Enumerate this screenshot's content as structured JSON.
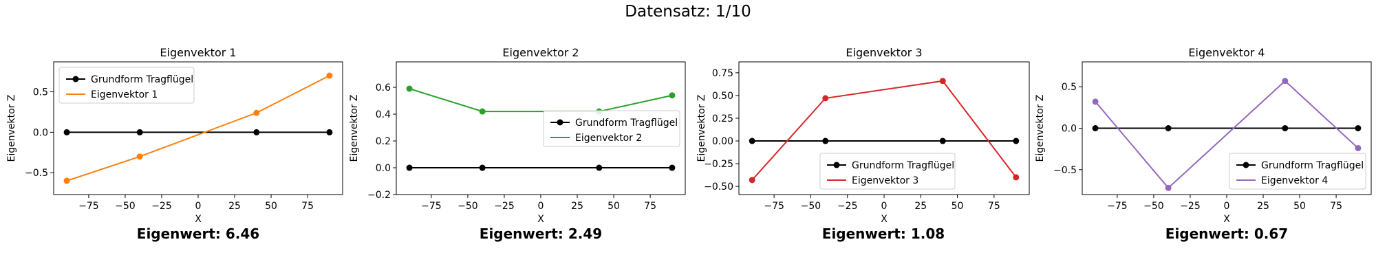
{
  "figure": {
    "title": "Datensatz: 1/10"
  },
  "chart_data": [
    {
      "type": "line",
      "title": "Eigenvektor 1",
      "xlabel": "X",
      "ylabel": "Eigenvektor Z",
      "xlim": [
        -99,
        99
      ],
      "ylim": [
        -0.77,
        0.87
      ],
      "xticks": [
        -75,
        -50,
        -25,
        0,
        25,
        50,
        75
      ],
      "yticks": [
        -0.5,
        0.0,
        0.5
      ],
      "ytick_labels": [
        "−0.5",
        "0.0",
        "0.5"
      ],
      "legend_position": "upper-left",
      "series": [
        {
          "name": "Grundform Tragflügel",
          "color": "#000000",
          "x": [
            -90,
            -40,
            40,
            90
          ],
          "y": [
            0,
            0,
            0,
            0
          ]
        },
        {
          "name": "Eigenvektor 1",
          "color": "#ff7f0e",
          "x": [
            -90,
            -40,
            40,
            90
          ],
          "y": [
            -0.6,
            -0.3,
            0.24,
            0.7
          ]
        }
      ],
      "eigenvalue_label": "Eigenwert: 6.46"
    },
    {
      "type": "line",
      "title": "Eigenvektor 2",
      "xlabel": "X",
      "ylabel": "Eigenvektor Z",
      "xlim": [
        -99,
        99
      ],
      "ylim": [
        -0.2,
        0.79
      ],
      "xticks": [
        -75,
        -50,
        -25,
        0,
        25,
        50,
        75
      ],
      "yticks": [
        -0.2,
        0.0,
        0.2,
        0.4,
        0.6
      ],
      "ytick_labels": [
        "−0.2",
        "0.0",
        "0.2",
        "0.4",
        "0.6"
      ],
      "legend_position": "center-right",
      "series": [
        {
          "name": "Grundform Tragflügel",
          "color": "#000000",
          "x": [
            -90,
            -40,
            40,
            90
          ],
          "y": [
            0,
            0,
            0,
            0
          ]
        },
        {
          "name": "Eigenvektor 2",
          "color": "#2ca02c",
          "x": [
            -90,
            -40,
            40,
            90
          ],
          "y": [
            0.59,
            0.42,
            0.42,
            0.54
          ]
        }
      ],
      "eigenvalue_label": "Eigenwert: 2.49"
    },
    {
      "type": "line",
      "title": "Eigenvektor 3",
      "xlabel": "X",
      "ylabel": "Eigenvektor Z",
      "xlim": [
        -99,
        99
      ],
      "ylim": [
        -0.59,
        0.87
      ],
      "xticks": [
        -75,
        -50,
        -25,
        0,
        25,
        50,
        75
      ],
      "yticks": [
        -0.5,
        -0.25,
        0.0,
        0.25,
        0.5,
        0.75
      ],
      "ytick_labels": [
        "−0.50",
        "−0.25",
        "0.00",
        "0.25",
        "0.50",
        "0.75"
      ],
      "legend_position": "lower-center",
      "series": [
        {
          "name": "Grundform Tragflügel",
          "color": "#000000",
          "x": [
            -90,
            -40,
            40,
            90
          ],
          "y": [
            0,
            0,
            0,
            0
          ]
        },
        {
          "name": "Eigenvektor 3",
          "color": "#d62728",
          "x": [
            -90,
            -40,
            40,
            90
          ],
          "y": [
            -0.43,
            0.47,
            0.66,
            -0.4
          ]
        }
      ],
      "eigenvalue_label": "Eigenwert: 1.08"
    },
    {
      "type": "line",
      "title": "Eigenvektor 4",
      "xlabel": "X",
      "ylabel": "Eigenvektor Z",
      "xlim": [
        -99,
        99
      ],
      "ylim": [
        -0.8,
        0.8
      ],
      "xticks": [
        -75,
        -50,
        -25,
        0,
        25,
        50,
        75
      ],
      "yticks": [
        -0.5,
        0.0,
        0.5
      ],
      "ytick_labels": [
        "−0.5",
        "0.0",
        "0.5"
      ],
      "legend_position": "lower-right",
      "series": [
        {
          "name": "Grundform Tragflügel",
          "color": "#000000",
          "x": [
            -90,
            -40,
            40,
            90
          ],
          "y": [
            0,
            0,
            0,
            0
          ]
        },
        {
          "name": "Eigenvektor 4",
          "color": "#9467bd",
          "x": [
            -90,
            -40,
            40,
            90
          ],
          "y": [
            0.32,
            -0.72,
            0.57,
            -0.24
          ]
        }
      ],
      "eigenvalue_label": "Eigenwert: 0.67"
    }
  ]
}
